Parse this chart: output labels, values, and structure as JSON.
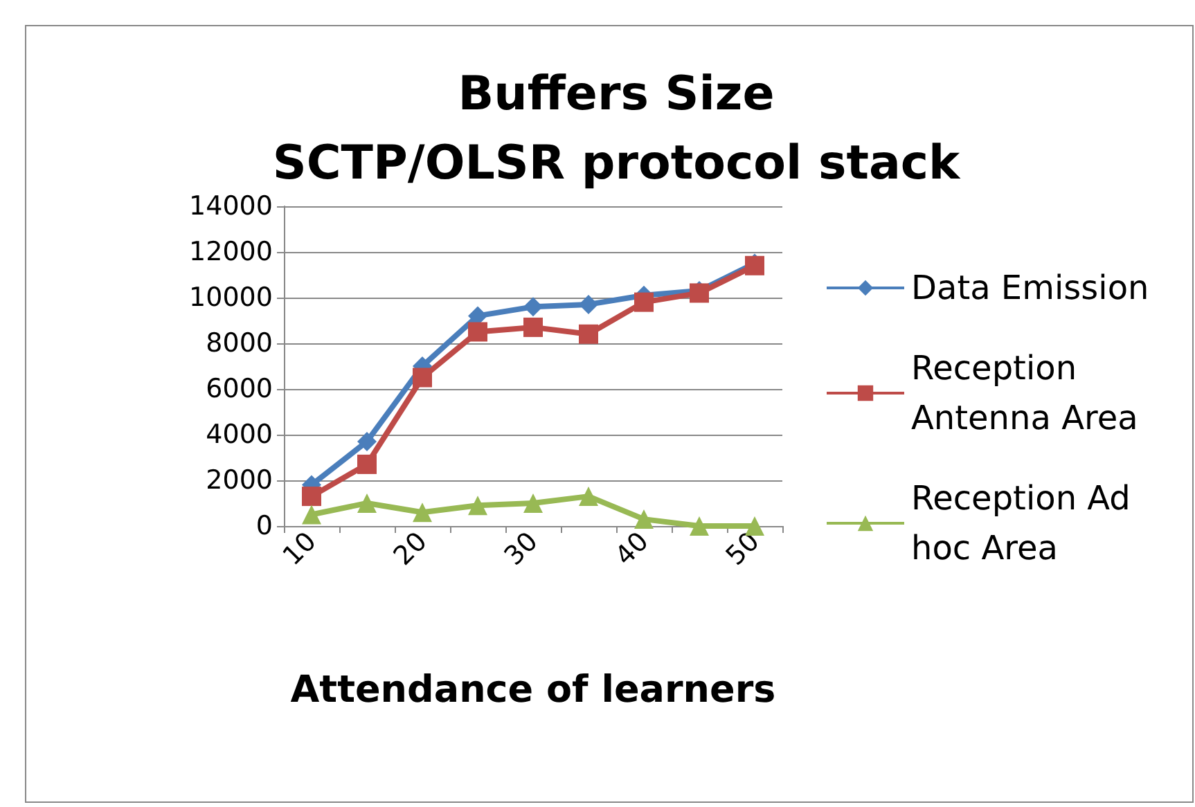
{
  "chart_data": {
    "type": "line",
    "title": "Buffers Size\nSCTP/OLSR protocol stack",
    "xlabel": "Attendance of learners",
    "categories": [
      "10",
      null,
      "20",
      null,
      "30",
      null,
      "40",
      null,
      "50"
    ],
    "series": [
      {
        "name": "Data Emission",
        "color": "#4a7ebb",
        "marker": "diamond",
        "values": [
          1800,
          3700,
          7000,
          9200,
          9600,
          9700,
          10100,
          10300,
          11500
        ]
      },
      {
        "name": "Reception Antenna Area",
        "color": "#be4b48",
        "marker": "square",
        "values": [
          1300,
          2700,
          6500,
          8500,
          8700,
          8400,
          9800,
          10200,
          11400
        ]
      },
      {
        "name": "Reception Ad hoc Area",
        "color": "#98b954",
        "marker": "triangle",
        "values": [
          500,
          1000,
          600,
          900,
          1000,
          1300,
          300,
          0,
          0
        ]
      }
    ],
    "ylim": [
      0,
      14000
    ],
    "yticks": [
      0,
      2000,
      4000,
      6000,
      8000,
      10000,
      12000,
      14000
    ],
    "grid": "y",
    "legend": "right",
    "line_style": "solid"
  }
}
